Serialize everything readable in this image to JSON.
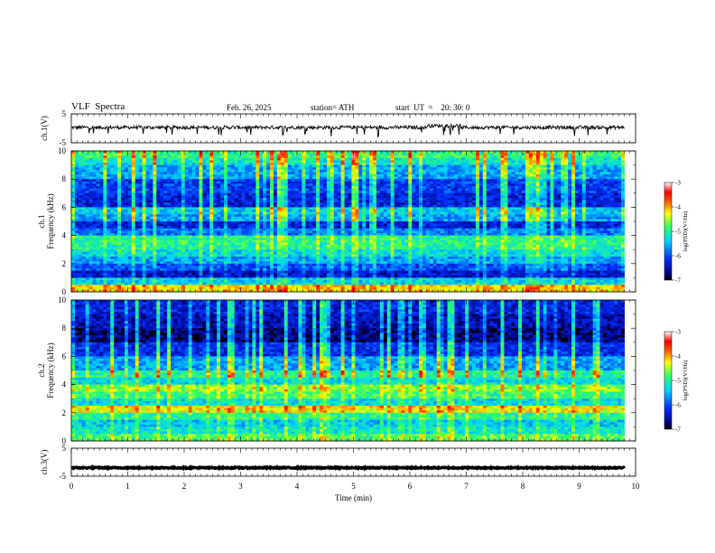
{
  "header": {
    "title": "VLF  Spectra",
    "date": "Feb. 26, 2025",
    "station": "station= ATH",
    "start_ut": "start  UT  =    20: 30: 0"
  },
  "chart_data": {
    "type": "heatmap",
    "xlabel": "Time  (min)",
    "xlim": [
      0,
      10
    ],
    "xticks": [
      "0",
      "1",
      "2",
      "3",
      "4",
      "5",
      "6",
      "7",
      "8",
      "9",
      "10"
    ],
    "panels": [
      {
        "name": "ch1-waveform",
        "type": "line",
        "ylabel": "ch.1(V)",
        "ylim": [
          -5,
          5
        ],
        "yticks": [
          "5",
          "-5"
        ],
        "trace_mean": 0.3,
        "trace_amplitude": 0.6
      },
      {
        "name": "ch1-spectrogram",
        "type": "heatmap",
        "ylabel_top": "ch.1",
        "ylabel": "Frequency  (kHz)",
        "ylim": [
          0,
          10
        ],
        "yticks": [
          "0",
          "2",
          "4",
          "6",
          "8",
          "10"
        ],
        "colorbar": {
          "label": "log(PSD)(V²/Hz)",
          "range": [
            -7,
            -3
          ],
          "ticks": [
            "-3",
            "-4",
            "-5",
            "-6",
            "-7"
          ]
        },
        "bands": [
          {
            "f": [
              9.5,
              10.0
            ],
            "psd": -4.9
          },
          {
            "f": [
              9.0,
              9.5
            ],
            "psd": -5.2
          },
          {
            "f": [
              8.0,
              9.0
            ],
            "psd": -5.6
          },
          {
            "f": [
              7.0,
              8.0
            ],
            "psd": -6.1
          },
          {
            "f": [
              6.0,
              7.0
            ],
            "psd": -6.3
          },
          {
            "f": [
              5.5,
              6.0
            ],
            "psd": -5.4
          },
          {
            "f": [
              5.0,
              5.5
            ],
            "psd": -5.6
          },
          {
            "f": [
              4.5,
              5.0
            ],
            "psd": -6.3
          },
          {
            "f": [
              4.0,
              4.5
            ],
            "psd": -5.8
          },
          {
            "f": [
              3.0,
              4.0
            ],
            "psd": -5.0
          },
          {
            "f": [
              2.5,
              3.0
            ],
            "psd": -5.3
          },
          {
            "f": [
              2.0,
              2.5
            ],
            "psd": -5.6
          },
          {
            "f": [
              1.5,
              2.0
            ],
            "psd": -6.0
          },
          {
            "f": [
              1.0,
              1.5
            ],
            "psd": -6.4
          },
          {
            "f": [
              0.5,
              1.0
            ],
            "psd": -5.4
          },
          {
            "f": [
              0.0,
              0.5
            ],
            "psd": -4.2
          }
        ]
      },
      {
        "name": "ch2-spectrogram",
        "type": "heatmap",
        "ylabel_top": "ch.2",
        "ylabel": "Frequency  (kHz)",
        "ylim": [
          0,
          10
        ],
        "yticks": [
          "0",
          "2",
          "4",
          "6",
          "8",
          "10"
        ],
        "colorbar": {
          "label": "log(PSD)(V²/Hz)",
          "range": [
            -7,
            -3
          ],
          "ticks": [
            "-3",
            "-4",
            "-5",
            "-6",
            "-7"
          ]
        },
        "bands": [
          {
            "f": [
              9.0,
              10.0
            ],
            "psd": -6.3
          },
          {
            "f": [
              8.0,
              9.0
            ],
            "psd": -6.5
          },
          {
            "f": [
              7.0,
              8.0
            ],
            "psd": -6.7
          },
          {
            "f": [
              6.0,
              7.0
            ],
            "psd": -6.2
          },
          {
            "f": [
              5.0,
              6.0
            ],
            "psd": -5.6
          },
          {
            "f": [
              4.5,
              5.0
            ],
            "psd": -5.0
          },
          {
            "f": [
              4.0,
              4.5
            ],
            "psd": -5.3
          },
          {
            "f": [
              3.5,
              4.0
            ],
            "psd": -4.6
          },
          {
            "f": [
              3.0,
              3.5
            ],
            "psd": -4.9
          },
          {
            "f": [
              2.5,
              3.0
            ],
            "psd": -5.3
          },
          {
            "f": [
              2.0,
              2.5
            ],
            "psd": -4.3
          },
          {
            "f": [
              1.5,
              2.0
            ],
            "psd": -5.0
          },
          {
            "f": [
              1.0,
              1.5
            ],
            "psd": -5.4
          },
          {
            "f": [
              0.5,
              1.0
            ],
            "psd": -5.2
          },
          {
            "f": [
              0.0,
              0.5
            ],
            "psd": -4.8
          }
        ]
      },
      {
        "name": "ch3-waveform",
        "type": "line",
        "ylabel": "ch.3(V)",
        "ylim": [
          -5,
          5
        ],
        "yticks": [
          "5",
          "-5"
        ],
        "trace_mean": -2.0,
        "trace_amplitude": 0.2
      }
    ]
  }
}
